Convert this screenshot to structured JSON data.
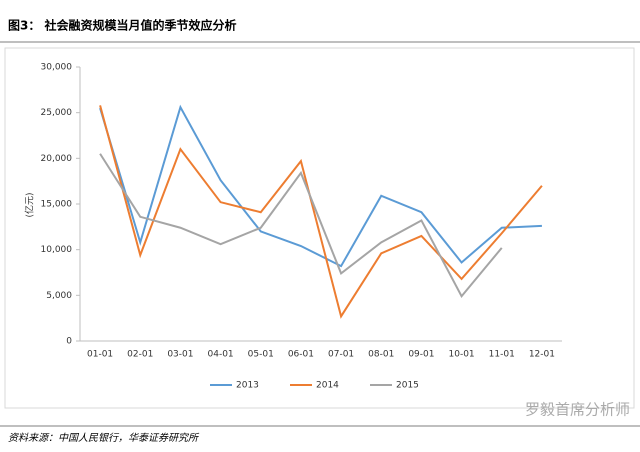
{
  "chart_data": {
    "type": "line",
    "title": "图3： 社会融资规模当月值的季节效应分析",
    "y_label": "(亿元)",
    "source": "资料来源：中国人民银行，华泰证券研究所",
    "watermark": "罗毅首席分析师",
    "categories": [
      "01-01",
      "02-01",
      "03-01",
      "04-01",
      "05-01",
      "06-01",
      "07-01",
      "08-01",
      "09-01",
      "10-01",
      "11-01",
      "12-01"
    ],
    "series": [
      {
        "name": "2013",
        "color": "#5b9bd5",
        "values": [
          25500,
          10800,
          25600,
          17600,
          12000,
          10400,
          8200,
          15900,
          14100,
          8600,
          12400,
          12600
        ]
      },
      {
        "name": "2014",
        "color": "#ed7d31",
        "values": [
          25800,
          9400,
          21000,
          15200,
          14100,
          19700,
          2700,
          9600,
          11500,
          6800,
          11800,
          17000
        ]
      },
      {
        "name": "2015",
        "color": "#a5a5a5",
        "values": [
          20500,
          13600,
          12400,
          10600,
          12400,
          18400,
          7400,
          10800,
          13200,
          4900,
          10200,
          null
        ]
      }
    ],
    "ylim": [
      0,
      30000
    ],
    "yticks": [
      0,
      {
        "value": 5000,
        "label": "5,000"
      },
      {
        "value": 10000,
        "label": "10,000"
      },
      {
        "value": 15000,
        "label": "15,000"
      },
      {
        "value": 20000,
        "label": "20,000"
      },
      {
        "value": 25000,
        "label": "25,000"
      },
      {
        "value": 30000,
        "label": "30,000"
      }
    ],
    "legend": "bottom"
  }
}
